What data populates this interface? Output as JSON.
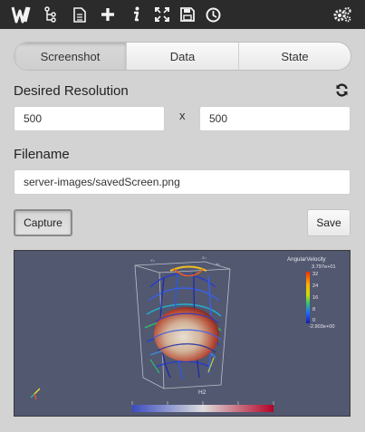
{
  "toolbar": {
    "logo": "W",
    "icons": [
      "paraview-logo",
      "pipeline-icon",
      "document-icon",
      "plus-icon",
      "info-icon",
      "fullscreen-icon",
      "save-icon",
      "clock-icon",
      "settings-icon"
    ]
  },
  "tabs": [
    {
      "label": "Screenshot",
      "active": true
    },
    {
      "label": "Data",
      "active": false
    },
    {
      "label": "State",
      "active": false
    }
  ],
  "resolution": {
    "label": "Desired Resolution",
    "width": "500",
    "separator": "x",
    "height": "500"
  },
  "filename": {
    "label": "Filename",
    "value": "server-images/savedScreen.png"
  },
  "actions": {
    "capture_label": "Capture",
    "save_label": "Save"
  },
  "viewer": {
    "background": "#525870",
    "legend": {
      "title": "AngularVelocity",
      "max": "3.797e+01",
      "ticks": [
        "32",
        "24",
        "16",
        "8",
        "0"
      ],
      "min": "-2.903e+00"
    },
    "bottom_label": "H2"
  }
}
